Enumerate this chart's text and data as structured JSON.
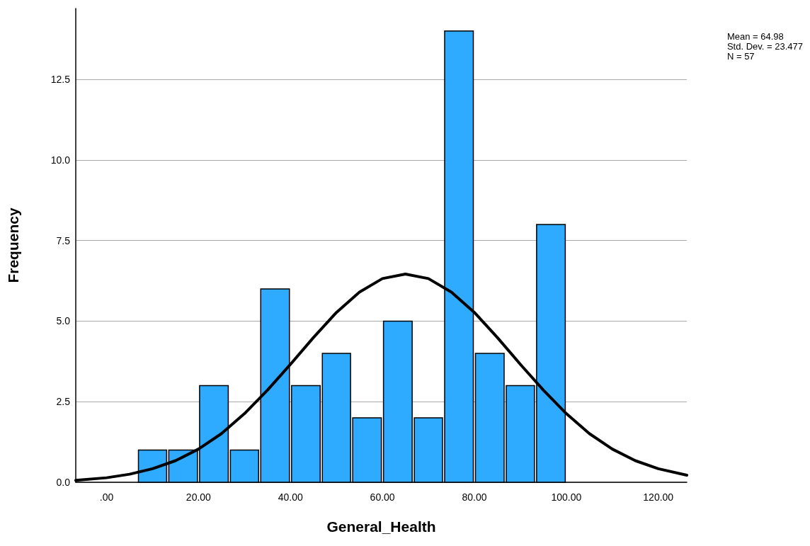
{
  "chart_data": {
    "type": "histogram",
    "xlabel": "General_Health",
    "ylabel": "Frequency",
    "bins": [
      6.7,
      13.3,
      20,
      26.7,
      33.3,
      40,
      46.7,
      53.3,
      60,
      66.7,
      73.3,
      80,
      86.7,
      93.3,
      100
    ],
    "values": [
      1,
      1,
      3,
      1,
      6,
      3,
      4,
      2,
      5,
      2,
      14,
      4,
      3,
      8
    ],
    "color": "#2eaaff",
    "series": [
      {
        "type": "line",
        "color": "#000000",
        "x": [
          -6.7,
          0,
          5,
          10,
          15,
          20,
          25,
          30,
          35,
          40,
          45,
          50,
          55,
          60,
          65,
          70,
          75,
          80,
          85,
          90,
          95,
          100,
          105,
          110,
          115,
          120,
          126.2
        ],
        "values": [
          0.06,
          0.14,
          0.25,
          0.42,
          0.67,
          1.03,
          1.51,
          2.13,
          2.86,
          3.66,
          4.49,
          5.27,
          5.9,
          6.32,
          6.46,
          6.32,
          5.9,
          5.27,
          4.49,
          3.66,
          2.86,
          2.13,
          1.51,
          1.03,
          0.67,
          0.42,
          0.22
        ]
      }
    ],
    "xlim": [
      -6.7,
      126.2
    ],
    "xticks": [
      {
        "value": 0,
        "label": ".00"
      },
      {
        "value": 20,
        "label": "20.00"
      },
      {
        "value": 40,
        "label": "40.00"
      },
      {
        "value": 60,
        "label": "60.00"
      },
      {
        "value": 80,
        "label": "80.00"
      },
      {
        "value": 100,
        "label": "100.00"
      },
      {
        "value": 120,
        "label": "120.00"
      }
    ],
    "ylim": [
      0,
      14.7
    ],
    "yticks": [
      {
        "value": 0,
        "label": "0.0"
      },
      {
        "value": 2.5,
        "label": "2.5"
      },
      {
        "value": 5,
        "label": "5.0"
      },
      {
        "value": 7.5,
        "label": "7.5"
      },
      {
        "value": 10,
        "label": "10.0"
      },
      {
        "value": 12.5,
        "label": "12.5"
      }
    ],
    "grid": "y",
    "marker": "none",
    "annotations": [
      "Mean = 64.98",
      "Std. Dev. = 23.477",
      "N = 57"
    ]
  }
}
